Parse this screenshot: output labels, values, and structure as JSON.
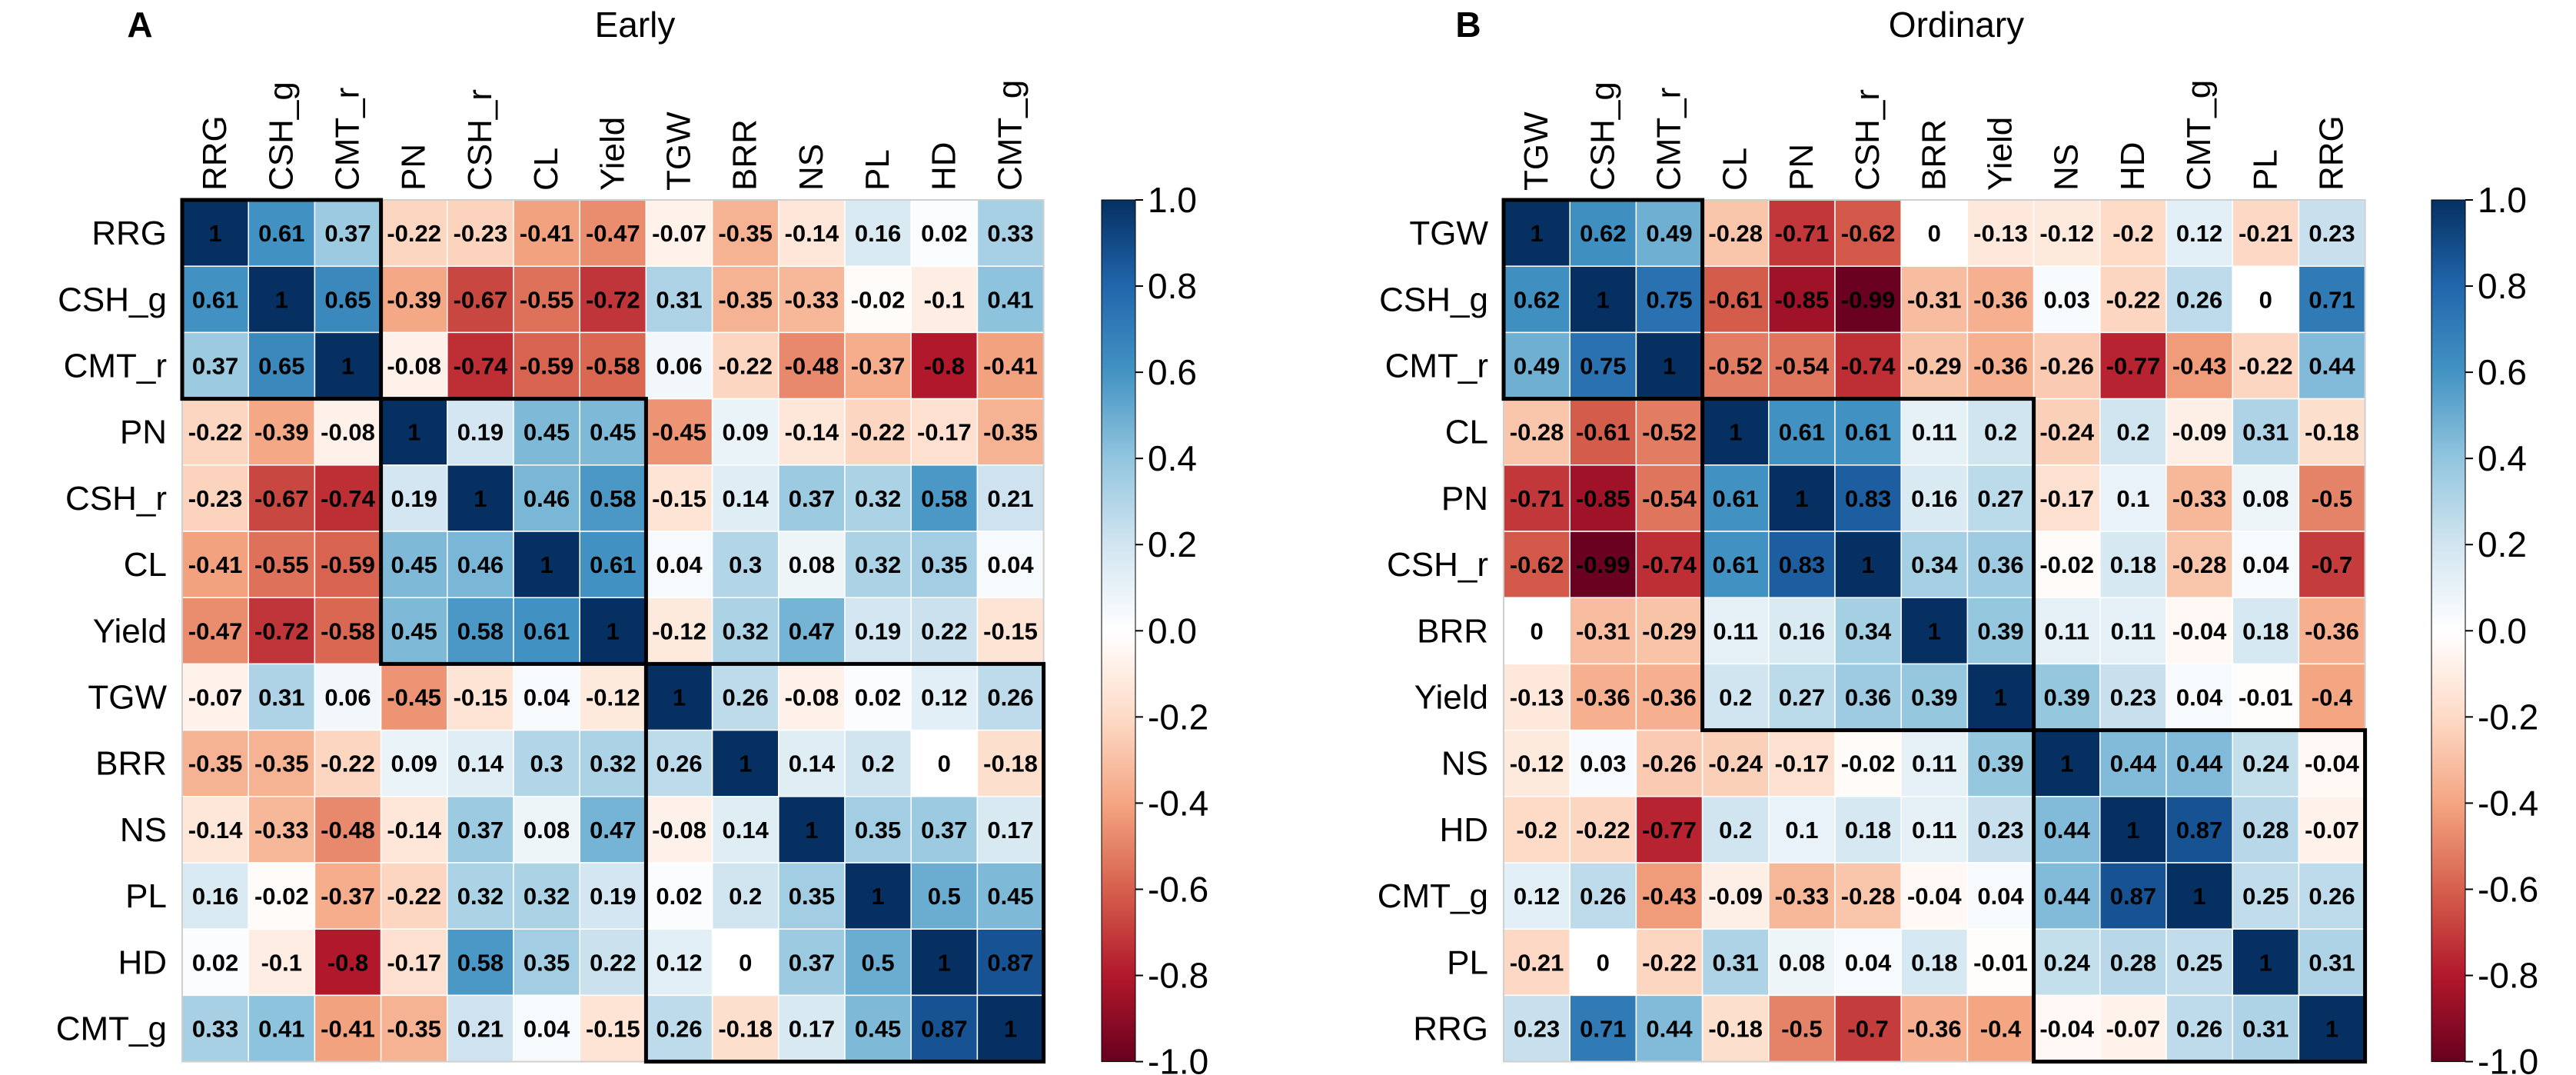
{
  "chart_data": [
    {
      "type": "heatmap",
      "panel": "A",
      "title": "Early",
      "labels": [
        "RRG",
        "CSH_g",
        "CMT_r",
        "PN",
        "CSH_r",
        "CL",
        "Yield",
        "TGW",
        "BRR",
        "NS",
        "PL",
        "HD",
        "CMT_g"
      ],
      "clusters": [
        [
          0,
          3
        ],
        [
          3,
          7
        ],
        [
          7,
          13
        ]
      ],
      "values": [
        [
          1,
          0.61,
          0.37,
          -0.22,
          -0.23,
          -0.41,
          -0.47,
          -0.07,
          -0.35,
          -0.14,
          0.16,
          0.02,
          0.33
        ],
        [
          0.61,
          1,
          0.65,
          -0.39,
          -0.67,
          -0.55,
          -0.72,
          0.31,
          -0.35,
          -0.33,
          -0.02,
          -0.1,
          0.41
        ],
        [
          0.37,
          0.65,
          1,
          -0.08,
          -0.74,
          -0.59,
          -0.58,
          0.06,
          -0.22,
          -0.48,
          -0.37,
          -0.8,
          -0.41
        ],
        [
          -0.22,
          -0.39,
          -0.08,
          1,
          0.19,
          0.45,
          0.45,
          -0.45,
          0.09,
          -0.14,
          -0.22,
          -0.17,
          -0.35
        ],
        [
          -0.23,
          -0.67,
          -0.74,
          0.19,
          1,
          0.46,
          0.58,
          -0.15,
          0.14,
          0.37,
          0.32,
          0.58,
          0.21
        ],
        [
          -0.41,
          -0.55,
          -0.59,
          0.45,
          0.46,
          1,
          0.61,
          0.04,
          0.3,
          0.08,
          0.32,
          0.35,
          0.04
        ],
        [
          -0.47,
          -0.72,
          -0.58,
          0.45,
          0.58,
          0.61,
          1,
          -0.12,
          0.32,
          0.47,
          0.19,
          0.22,
          -0.15
        ],
        [
          -0.07,
          0.31,
          0.06,
          -0.45,
          -0.15,
          0.04,
          -0.12,
          1,
          0.26,
          -0.08,
          0.02,
          0.12,
          0.26
        ],
        [
          -0.35,
          -0.35,
          -0.22,
          0.09,
          0.14,
          0.3,
          0.32,
          0.26,
          1,
          0.14,
          0.2,
          0,
          -0.18
        ],
        [
          -0.14,
          -0.33,
          -0.48,
          -0.14,
          0.37,
          0.08,
          0.47,
          -0.08,
          0.14,
          1,
          0.35,
          0.37,
          0.17
        ],
        [
          0.16,
          -0.02,
          -0.37,
          -0.22,
          0.32,
          0.32,
          0.19,
          0.02,
          0.2,
          0.35,
          1,
          0.5,
          0.45
        ],
        [
          0.02,
          -0.1,
          -0.8,
          -0.17,
          0.58,
          0.35,
          0.22,
          0.12,
          0,
          0.37,
          0.5,
          1,
          0.87
        ],
        [
          0.33,
          0.41,
          -0.41,
          -0.35,
          0.21,
          0.04,
          -0.15,
          0.26,
          -0.18,
          0.17,
          0.45,
          0.87,
          1
        ]
      ],
      "colorbar_ticks": [
        "1.0",
        "0.8",
        "0.6",
        "0.4",
        "0.2",
        "0.0",
        "-0.2",
        "-0.4",
        "-0.6",
        "-0.8",
        "-1.0"
      ],
      "range": [
        -1,
        1
      ]
    },
    {
      "type": "heatmap",
      "panel": "B",
      "title": "Ordinary",
      "labels": [
        "TGW",
        "CSH_g",
        "CMT_r",
        "CL",
        "PN",
        "CSH_r",
        "BRR",
        "Yield",
        "NS",
        "HD",
        "CMT_g",
        "PL",
        "RRG"
      ],
      "clusters": [
        [
          0,
          3
        ],
        [
          3,
          8
        ],
        [
          8,
          13
        ]
      ],
      "values": [
        [
          1,
          0.62,
          0.49,
          -0.28,
          -0.71,
          -0.62,
          0,
          -0.13,
          -0.12,
          -0.2,
          0.12,
          -0.21,
          0.23
        ],
        [
          0.62,
          1,
          0.75,
          -0.61,
          -0.85,
          -0.99,
          -0.31,
          -0.36,
          0.03,
          -0.22,
          0.26,
          0,
          0.71
        ],
        [
          0.49,
          0.75,
          1,
          -0.52,
          -0.54,
          -0.74,
          -0.29,
          -0.36,
          -0.26,
          -0.77,
          -0.43,
          -0.22,
          0.44
        ],
        [
          -0.28,
          -0.61,
          -0.52,
          1,
          0.61,
          0.61,
          0.11,
          0.2,
          -0.24,
          0.2,
          -0.09,
          0.31,
          -0.18
        ],
        [
          -0.71,
          -0.85,
          -0.54,
          0.61,
          1,
          0.83,
          0.16,
          0.27,
          -0.17,
          0.1,
          -0.33,
          0.08,
          -0.5
        ],
        [
          -0.62,
          -0.99,
          -0.74,
          0.61,
          0.83,
          1,
          0.34,
          0.36,
          -0.02,
          0.18,
          -0.28,
          0.04,
          -0.7
        ],
        [
          0,
          -0.31,
          -0.29,
          0.11,
          0.16,
          0.34,
          1,
          0.39,
          0.11,
          0.11,
          -0.04,
          0.18,
          -0.36
        ],
        [
          -0.13,
          -0.36,
          -0.36,
          0.2,
          0.27,
          0.36,
          0.39,
          1,
          0.39,
          0.23,
          0.04,
          -0.01,
          -0.4
        ],
        [
          -0.12,
          0.03,
          -0.26,
          -0.24,
          -0.17,
          -0.02,
          0.11,
          0.39,
          1,
          0.44,
          0.44,
          0.24,
          -0.04
        ],
        [
          -0.2,
          -0.22,
          -0.77,
          0.2,
          0.1,
          0.18,
          0.11,
          0.23,
          0.44,
          1,
          0.87,
          0.28,
          -0.07
        ],
        [
          0.12,
          0.26,
          -0.43,
          -0.09,
          -0.33,
          -0.28,
          -0.04,
          0.04,
          0.44,
          0.87,
          1,
          0.25,
          0.26
        ],
        [
          -0.21,
          0,
          -0.22,
          0.31,
          0.08,
          0.04,
          0.18,
          -0.01,
          0.24,
          0.28,
          0.25,
          1,
          0.31
        ],
        [
          0.23,
          0.71,
          0.44,
          -0.18,
          -0.5,
          -0.7,
          -0.36,
          -0.4,
          -0.04,
          -0.07,
          0.26,
          0.31,
          1
        ]
      ],
      "colorbar_ticks": [
        "1.0",
        "0.8",
        "0.6",
        "0.4",
        "0.2",
        "0.0",
        "-0.2",
        "-0.4",
        "-0.6",
        "-0.8",
        "-1.0"
      ],
      "range": [
        -1,
        1
      ]
    }
  ]
}
